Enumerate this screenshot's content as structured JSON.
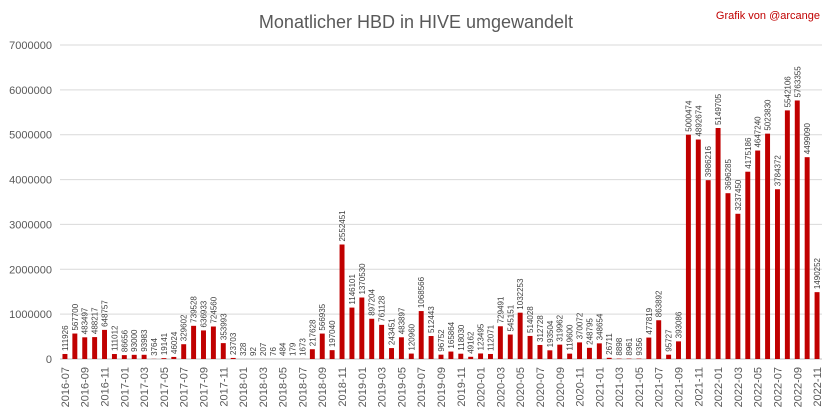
{
  "chart_data": {
    "type": "bar",
    "title": "Monatlicher HBD in HIVE umgewandelt",
    "credit": "Grafik von @arcange",
    "xlabel": "",
    "ylabel": "",
    "ylim": [
      0,
      7000000
    ],
    "yticks": [
      0,
      1000000,
      2000000,
      3000000,
      4000000,
      5000000,
      6000000,
      7000000
    ],
    "ytick_labels": [
      "0",
      "1000000",
      "2000000",
      "3000000",
      "4000000",
      "5000000",
      "6000000",
      "7000000"
    ],
    "grid": true,
    "legend": "none",
    "bar_color": "#c00000",
    "categories": [
      "2016-07",
      "2016-08",
      "2016-09",
      "2016-10",
      "2016-11",
      "2016-12",
      "2017-01",
      "2017-02",
      "2017-03",
      "2017-04",
      "2017-05",
      "2017-06",
      "2017-07",
      "2017-08",
      "2017-09",
      "2017-10",
      "2017-11",
      "2017-12",
      "2018-01",
      "2018-02",
      "2018-03",
      "2018-04",
      "2018-05",
      "2018-06",
      "2018-07",
      "2018-08",
      "2018-09",
      "2018-10",
      "2018-11",
      "2018-12",
      "2019-01",
      "2019-02",
      "2019-03",
      "2019-04",
      "2019-05",
      "2019-06",
      "2019-07",
      "2019-08",
      "2019-09",
      "2019-10",
      "2019-11",
      "2019-12",
      "2020-01",
      "2020-02",
      "2020-03",
      "2020-04",
      "2020-05",
      "2020-06",
      "2020-07",
      "2020-08",
      "2020-09",
      "2020-10",
      "2020-11",
      "2020-12",
      "2021-01",
      "2021-02",
      "2021-03",
      "2021-04",
      "2021-05",
      "2021-06",
      "2021-07",
      "2021-08",
      "2021-09",
      "2021-10",
      "2021-11",
      "2021-12",
      "2022-01",
      "2022-02",
      "2022-03",
      "2022-04",
      "2022-05",
      "2022-06",
      "2022-07",
      "2022-08",
      "2022-09",
      "2022-10",
      "2022-11"
    ],
    "values": [
      111926,
      567700,
      483497,
      488217,
      648757,
      111012,
      86656,
      93000,
      93983,
      3764,
      19141,
      46024,
      329602,
      739528,
      636933,
      724560,
      353993,
      23703,
      328,
      92,
      207,
      76,
      484,
      179,
      1673,
      217628,
      566935,
      197040,
      2552451,
      1146101,
      1370530,
      897204,
      761128,
      243451,
      483897,
      120960,
      1068566,
      512443,
      96752,
      165864,
      118030,
      49162,
      123495,
      112071,
      729491,
      545151,
      1032253,
      514028,
      312728,
      193504,
      319962,
      119600,
      370072,
      248795,
      348654,
      26711,
      8898,
      8961,
      9356,
      477819,
      863892,
      95727,
      393086,
      5000474,
      4892674,
      3986216,
      5149705,
      3696285,
      3237450,
      4175186,
      4647240,
      5023830,
      3784372,
      5542106,
      5763355,
      4499090,
      1490252
    ],
    "data_labels": [
      "111926",
      "567700",
      "483497",
      "488217",
      "648757",
      "111012",
      "86656",
      "93000",
      "93983",
      "3764",
      "19141",
      "46024",
      "329602",
      "739528",
      "636933",
      "724560",
      "353993",
      "23703",
      "328",
      "92",
      "207",
      "76",
      "484",
      "179",
      "1673",
      "217628",
      "566935",
      "197040",
      "2552451",
      "1146101",
      "1370530",
      "897204",
      "761128",
      "243451",
      "483897",
      "120960",
      "1068566",
      "512443",
      "96752",
      "165864",
      "118030",
      "49162",
      "123495",
      "112071",
      "729491",
      "545151",
      "1032253",
      "514028",
      "312728",
      "193504",
      "319962",
      "119600",
      "370072",
      "248795",
      "348654",
      "26711",
      "8898",
      "8961",
      "9356",
      "477819",
      "863892",
      "95727",
      "393086",
      "5000474",
      "4892674",
      "3986216",
      "5149705",
      "3696285",
      "3237450",
      "4175186",
      "4647240",
      "5023830",
      "3784372",
      "5542106",
      "5763355",
      "4499090",
      "1490252"
    ],
    "xtick_labels": [
      "2016-07",
      "2016-09",
      "2016-11",
      "2017-01",
      "2017-03",
      "2017-05",
      "2017-07",
      "2017-09",
      "2017-11",
      "2018-01",
      "2018-03",
      "2018-05",
      "2018-07",
      "2018-09",
      "2018-11",
      "2019-01",
      "2019-03",
      "2019-05",
      "2019-07",
      "2019-09",
      "2019-11",
      "2020-01",
      "2020-03",
      "2020-05",
      "2020-07",
      "2020-09",
      "2020-11",
      "2021-01",
      "2021-03",
      "2021-05",
      "2021-07",
      "2021-09",
      "2021-11",
      "2022-01",
      "2022-03",
      "2022-05",
      "2022-07",
      "2022-09",
      "2022-11"
    ]
  }
}
